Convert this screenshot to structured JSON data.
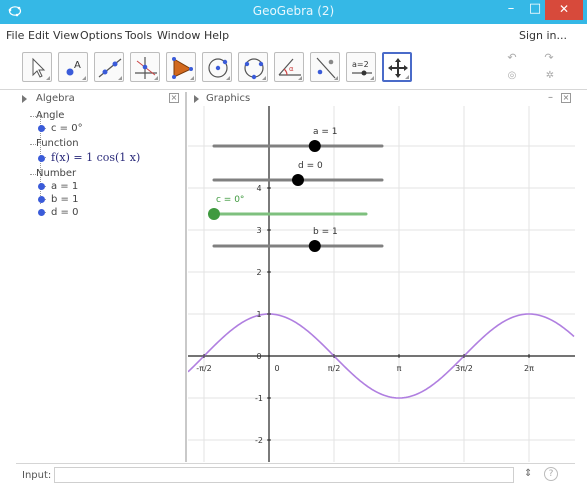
{
  "window": {
    "title": "GeoGebra (2)",
    "min_glyph": "–",
    "max_glyph": "□",
    "close_glyph": "✕"
  },
  "menu": {
    "items": [
      "File",
      "Edit",
      "View",
      "Options",
      "Tools",
      "Window",
      "Help"
    ],
    "sign_in": "Sign in..."
  },
  "toolbar": {
    "tools": [
      "move",
      "point",
      "line",
      "perpendicular-line",
      "polygon",
      "circle",
      "circle-through-points",
      "angle",
      "reflect",
      "slider",
      "move-graphics-view"
    ],
    "active_tool": "move-graphics-view",
    "slider_tool_text": "a=2",
    "undo_glyph": "↶",
    "redo_glyph": "↷",
    "undo_icon": "undo-icon",
    "redo_icon": "redo-icon"
  },
  "algebra": {
    "header": "Algebra",
    "groups": [
      {
        "title": "Angle",
        "items": [
          {
            "text": "c = 0°"
          }
        ]
      },
      {
        "title": "Function",
        "items": [
          {
            "text": "f(x) = 1 cos(1 x)"
          }
        ]
      },
      {
        "title": "Number",
        "items": [
          {
            "text": "a = 1"
          },
          {
            "text": "b = 1"
          },
          {
            "text": "d = 0"
          }
        ]
      }
    ],
    "close_glyph": "×"
  },
  "graphics": {
    "header": "Graphics",
    "dash": "–",
    "close_glyph": "×",
    "sliders": [
      {
        "label": "a = 1",
        "value": 1
      },
      {
        "label": "d = 0",
        "value": 0
      },
      {
        "label": "c = 0°",
        "value": 0
      },
      {
        "label": "b = 1",
        "value": 1
      }
    ],
    "y_ticks": [
      "4",
      "3",
      "2",
      "1",
      "0",
      "-1",
      "-2"
    ],
    "x_ticks": [
      "-π/2",
      "0",
      "π/2",
      "π",
      "3π/2",
      "2π"
    ],
    "curve_color": "#b07fe0",
    "slider_track_color": "#808080",
    "angle_slider_color": "#7ec07e",
    "point_color": "#000000",
    "angle_point_color": "#3f9a3f"
  },
  "inputbar": {
    "label": "Input:",
    "arrows": "⇕",
    "help": "?"
  }
}
